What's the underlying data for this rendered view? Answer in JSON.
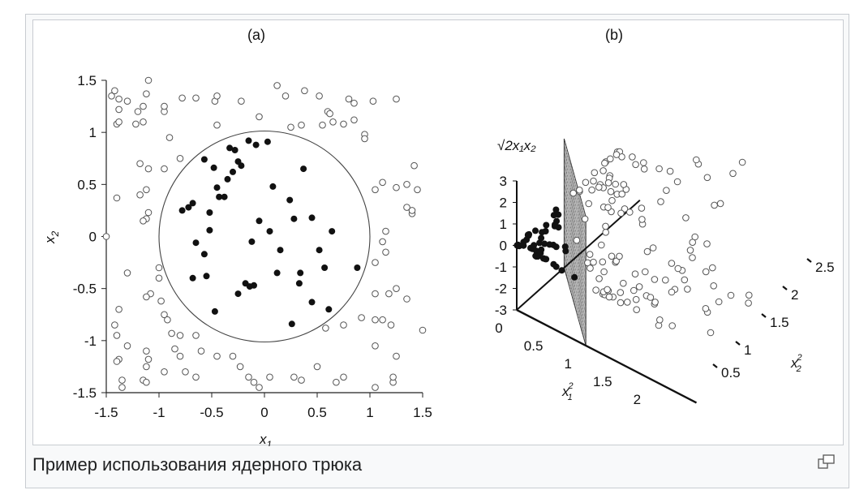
{
  "caption": "Пример использования ядерного трюка",
  "magnify_icon": "enlarge-icon",
  "chart_data": [
    {
      "type": "scatter",
      "panel_label": "(a)",
      "xlabel": "x",
      "xlabel_sub": "1",
      "ylabel": "x",
      "ylabel_sub": "2",
      "xlim": [
        -1.5,
        1.5
      ],
      "ylim": [
        -1.5,
        1.5
      ],
      "x_ticks": [
        "-1.5",
        "-1",
        "-0.5",
        "0",
        "0.5",
        "1",
        "1.5"
      ],
      "y_ticks": [
        "1.5",
        "1",
        "0.5",
        "0",
        "-0.5",
        "-1",
        "-1.5"
      ],
      "boundary": {
        "shape": "circle",
        "center": [
          0,
          0
        ],
        "radius": 1
      },
      "series": [
        {
          "marker": "filled-circle",
          "points": [
            [
              -0.78,
              0.25
            ],
            [
              -0.72,
              0.28
            ],
            [
              -0.68,
              0.32
            ],
            [
              -0.57,
              0.74
            ],
            [
              -0.48,
              0.66
            ],
            [
              -0.52,
              0.23
            ],
            [
              -0.45,
              0.47
            ],
            [
              -0.43,
              0.38
            ],
            [
              -0.38,
              0.38
            ],
            [
              -0.35,
              0.55
            ],
            [
              -0.33,
              0.85
            ],
            [
              -0.28,
              0.83
            ],
            [
              -0.3,
              0.62
            ],
            [
              -0.25,
              0.72
            ],
            [
              -0.22,
              0.68
            ],
            [
              -0.15,
              0.92
            ],
            [
              -0.08,
              0.88
            ],
            [
              0.03,
              0.91
            ],
            [
              0.08,
              0.48
            ],
            [
              -0.52,
              0.06
            ],
            [
              -0.65,
              -0.06
            ],
            [
              -0.57,
              -0.17
            ],
            [
              -0.68,
              -0.4
            ],
            [
              -0.55,
              -0.38
            ],
            [
              -0.47,
              -0.72
            ],
            [
              -0.25,
              -0.55
            ],
            [
              -0.18,
              -0.45
            ],
            [
              -0.14,
              -0.48
            ],
            [
              -0.1,
              -0.47
            ],
            [
              -0.12,
              -0.05
            ],
            [
              -0.05,
              0.15
            ],
            [
              0.05,
              0.05
            ],
            [
              0.15,
              -0.13
            ],
            [
              0.12,
              -0.35
            ],
            [
              0.24,
              0.35
            ],
            [
              0.28,
              0.17
            ],
            [
              0.45,
              0.18
            ],
            [
              0.37,
              0.65
            ],
            [
              0.34,
              -0.35
            ],
            [
              0.33,
              -0.45
            ],
            [
              0.45,
              -0.63
            ],
            [
              0.52,
              -0.13
            ],
            [
              0.57,
              -0.3
            ],
            [
              0.64,
              0.05
            ],
            [
              0.61,
              -0.7
            ],
            [
              0.88,
              -0.3
            ],
            [
              0.26,
              -0.84
            ]
          ]
        },
        {
          "marker": "open-circle",
          "points": [
            [
              -1.45,
              1.35
            ],
            [
              -1.42,
              1.4
            ],
            [
              -1.38,
              1.32
            ],
            [
              -1.3,
              1.3
            ],
            [
              -1.1,
              1.5
            ],
            [
              -1.12,
              1.37
            ],
            [
              -1.2,
              1.2
            ],
            [
              -1.15,
              1.25
            ],
            [
              -0.95,
              1.2
            ],
            [
              -0.95,
              1.25
            ],
            [
              -0.78,
              1.33
            ],
            [
              -0.65,
              1.33
            ],
            [
              -0.47,
              1.3
            ],
            [
              -0.45,
              1.35
            ],
            [
              -0.22,
              1.3
            ],
            [
              0.12,
              1.45
            ],
            [
              0.2,
              1.35
            ],
            [
              0.38,
              1.4
            ],
            [
              0.52,
              1.35
            ],
            [
              0.6,
              1.2
            ],
            [
              0.62,
              1.18
            ],
            [
              0.8,
              1.32
            ],
            [
              0.85,
              1.28
            ],
            [
              1.03,
              1.3
            ],
            [
              1.25,
              1.32
            ],
            [
              -1.4,
              1.08
            ],
            [
              -1.38,
              1.1
            ],
            [
              -1.38,
              1.22
            ],
            [
              -1.15,
              1.1
            ],
            [
              -1.22,
              1.08
            ],
            [
              -0.9,
              0.95
            ],
            [
              -0.45,
              1.07
            ],
            [
              -0.05,
              1.15
            ],
            [
              0.25,
              1.05
            ],
            [
              0.35,
              1.07
            ],
            [
              0.55,
              1.07
            ],
            [
              0.65,
              1.1
            ],
            [
              0.75,
              1.08
            ],
            [
              0.85,
              1.12
            ],
            [
              0.95,
              0.98
            ],
            [
              0.95,
              0.94
            ],
            [
              -1.18,
              0.7
            ],
            [
              -0.95,
              0.65
            ],
            [
              -0.8,
              0.75
            ],
            [
              -1.1,
              0.65
            ],
            [
              -1.18,
              0.4
            ],
            [
              -1.12,
              0.45
            ],
            [
              -1.1,
              0.23
            ],
            [
              -1.12,
              0.17
            ],
            [
              -1.15,
              0.15
            ],
            [
              -1.4,
              0.37
            ],
            [
              1.05,
              0.45
            ],
            [
              1.12,
              0.52
            ],
            [
              1.25,
              0.47
            ],
            [
              1.35,
              0.5
            ],
            [
              1.42,
              0.68
            ],
            [
              1.45,
              0.45
            ],
            [
              1.35,
              0.28
            ],
            [
              1.4,
              0.22
            ],
            [
              1.4,
              0.25
            ],
            [
              -1.5,
              0.0
            ],
            [
              1.12,
              -0.05
            ],
            [
              1.15,
              0.05
            ],
            [
              1.15,
              -0.15
            ],
            [
              1.05,
              -0.25
            ],
            [
              -1.3,
              -0.35
            ],
            [
              -1.0,
              -0.3
            ],
            [
              -1.0,
              -0.4
            ],
            [
              -1.08,
              -0.55
            ],
            [
              -1.12,
              -0.58
            ],
            [
              -0.98,
              -0.62
            ],
            [
              -0.95,
              -0.75
            ],
            [
              -0.92,
              -0.8
            ],
            [
              -0.8,
              -0.95
            ],
            [
              -0.88,
              -0.93
            ],
            [
              -0.65,
              -0.95
            ],
            [
              1.05,
              -0.55
            ],
            [
              1.18,
              -0.55
            ],
            [
              1.25,
              -0.5
            ],
            [
              1.35,
              -0.6
            ],
            [
              0.92,
              -0.78
            ],
            [
              1.05,
              -0.8
            ],
            [
              1.12,
              -0.8
            ],
            [
              1.2,
              -0.85
            ],
            [
              1.5,
              -0.9
            ],
            [
              0.75,
              -0.85
            ],
            [
              0.58,
              -0.88
            ],
            [
              -1.38,
              -0.7
            ],
            [
              -1.42,
              -0.85
            ],
            [
              -1.4,
              -0.95
            ],
            [
              -1.3,
              -1.05
            ],
            [
              -1.12,
              -1.1
            ],
            [
              -1.1,
              -1.18
            ],
            [
              -0.85,
              -1.08
            ],
            [
              -0.8,
              -1.15
            ],
            [
              -0.6,
              -1.1
            ],
            [
              -0.45,
              -1.15
            ],
            [
              -0.3,
              -1.15
            ],
            [
              -0.23,
              -1.25
            ],
            [
              -0.15,
              -1.35
            ],
            [
              -0.1,
              -1.4
            ],
            [
              -0.05,
              -1.45
            ],
            [
              0.05,
              -1.35
            ],
            [
              0.28,
              -1.35
            ],
            [
              0.35,
              -1.38
            ],
            [
              0.5,
              -1.25
            ],
            [
              1.05,
              -1.05
            ],
            [
              1.25,
              -1.15
            ],
            [
              1.22,
              -1.4
            ],
            [
              1.22,
              -1.35
            ],
            [
              1.05,
              -1.45
            ],
            [
              -1.38,
              -1.18
            ],
            [
              -1.4,
              -1.2
            ],
            [
              -1.12,
              -1.25
            ],
            [
              -1.15,
              -1.38
            ],
            [
              -1.12,
              -1.4
            ],
            [
              -0.95,
              -1.3
            ],
            [
              -0.75,
              -1.3
            ],
            [
              -0.65,
              -1.35
            ],
            [
              -1.35,
              -1.38
            ],
            [
              -1.35,
              -1.45
            ],
            [
              0.68,
              -1.4
            ],
            [
              0.75,
              -1.35
            ]
          ]
        }
      ]
    },
    {
      "type": "scatter",
      "panel_label": "(b)",
      "zlabel": "√2x₁x₂",
      "x1label": "x",
      "x1label_sub": "1",
      "x1label_sup": "2",
      "x2label": "x",
      "x2label_sub": "2",
      "x2label_sup": "2",
      "z_ticks": [
        "3",
        "2",
        "1",
        "0",
        "-1",
        "-2",
        "-3"
      ],
      "x1_ticks": [
        "0",
        "0.5",
        "1",
        "1.5",
        "2"
      ],
      "x2_ticks": [
        "0.5",
        "1",
        "1.5",
        "2",
        "2.5"
      ],
      "boundary": {
        "shape": "plane"
      }
    }
  ]
}
